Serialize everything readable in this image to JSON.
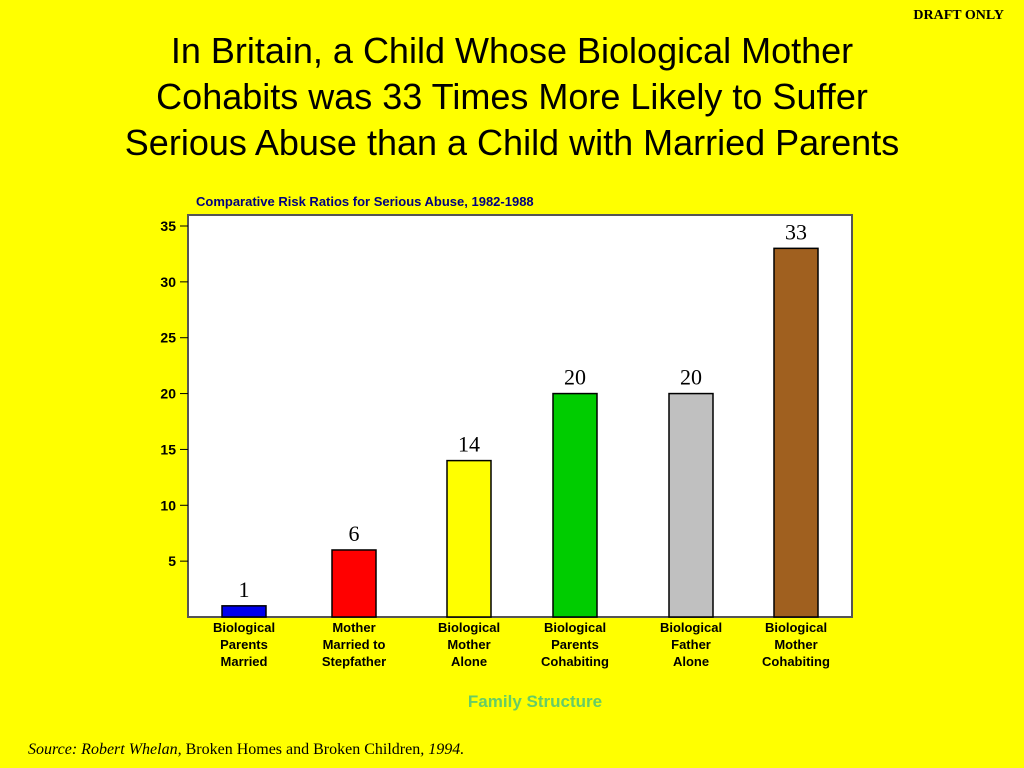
{
  "draft_label": "DRAFT ONLY",
  "title_lines": [
    "In Britain, a Child Whose Biological Mother",
    "Cohabits was 33 Times More Likely to Suffer",
    "Serious Abuse than a Child with Married Parents"
  ],
  "source": {
    "prefix": "Source: Robert Whelan,",
    "book": " Broken Homes and Broken Children",
    "year": ", 1994."
  },
  "chart_data": {
    "type": "bar",
    "title": "Comparative Risk Ratios for Serious Abuse, 1982-1988",
    "xlabel": "Family Structure",
    "ylabel": "",
    "categories": [
      [
        "Biological",
        "Parents",
        "Married"
      ],
      [
        "Mother",
        "Married to",
        "Stepfather"
      ],
      [
        "Biological",
        "Mother",
        "Alone"
      ],
      [
        "Biological",
        "Parents",
        "Cohabiting"
      ],
      [
        "Biological",
        "Father",
        "Alone"
      ],
      [
        "Biological",
        "Mother",
        "Cohabiting"
      ]
    ],
    "values": [
      1,
      6,
      14,
      20,
      20,
      33
    ],
    "colors": [
      "#0000EE",
      "#FF0000",
      "#FFFF00",
      "#00CC00",
      "#C0C0C0",
      "#A0601F"
    ],
    "yticks": [
      5,
      10,
      15,
      20,
      25,
      30,
      35
    ],
    "ylim": [
      0,
      35
    ],
    "grid": false,
    "legend": "none"
  }
}
